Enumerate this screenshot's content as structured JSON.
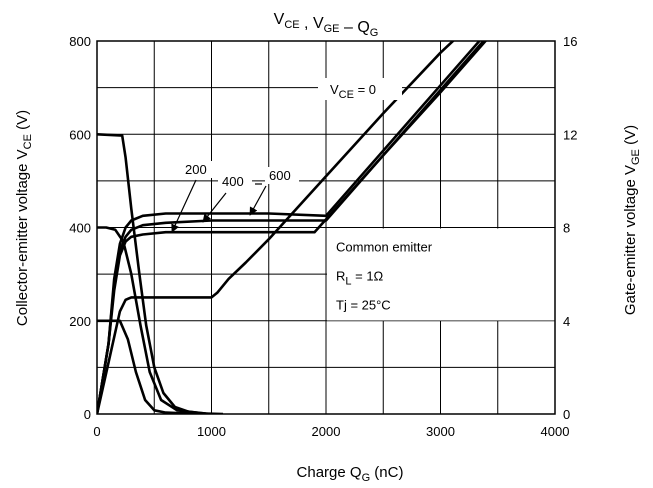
{
  "chart_data": {
    "type": "line",
    "title": {
      "parts": [
        [
          "V",
          "CE"
        ],
        [
          " , V",
          "GE"
        ],
        [
          " – Q",
          "G"
        ]
      ]
    },
    "xlabel": {
      "pre": "Charge   Q",
      "sub": "G",
      "post": "    (nC)"
    },
    "ylabel_left": {
      "pre": "Collector-emitter voltage    V",
      "sub": "CE",
      "post": "     (V)"
    },
    "ylabel_right": {
      "pre": "Gate-emitter voltage    V",
      "sub": "GE",
      "post": "     (V)"
    },
    "xlim": [
      0,
      4000
    ],
    "ylim_left": [
      0,
      800
    ],
    "ylim_right": [
      0,
      16
    ],
    "x_ticks": [
      0,
      1000,
      2000,
      3000,
      4000
    ],
    "y_left_ticks": [
      0,
      200,
      400,
      600,
      800
    ],
    "y_right_ticks": [
      0,
      4,
      8,
      12,
      16
    ],
    "x_tick_labels": [
      "0",
      "1000",
      "2000",
      "3000",
      "4000"
    ],
    "y_left_tick_labels": [
      "0",
      "200",
      "400",
      "600",
      "800"
    ],
    "y_right_tick_labels": [
      "0",
      "4",
      "8",
      "12",
      "16"
    ],
    "grid_lines_x": [
      500,
      1000,
      1500,
      2000,
      2500,
      3000,
      3500
    ],
    "grid_lines_y": [
      100,
      200,
      300,
      400,
      500,
      600,
      700
    ],
    "vce_labels": [
      "200",
      "400",
      "600"
    ],
    "vge_label": {
      "pre": "V",
      "sub": "CE",
      "post": " = 0"
    },
    "legend": {
      "placement": "center-right",
      "lines": [
        {
          "pre": "Common emitter",
          "sub": "",
          "post": ""
        },
        {
          "pre": "R",
          "sub": "L",
          "post": " = 1Ω"
        },
        {
          "pre": "Tj = 25°C",
          "sub": "",
          "post": ""
        }
      ]
    },
    "series": [
      {
        "axis": "left",
        "label": "200",
        "x": [
          0,
          200,
          270,
          340,
          420,
          500,
          600,
          800,
          1000
        ],
        "y": [
          200,
          200,
          160,
          90,
          30,
          8,
          3,
          1,
          0
        ]
      },
      {
        "axis": "left",
        "label": "400",
        "x": [
          0,
          80,
          160,
          230,
          300,
          380,
          460,
          560,
          700,
          900,
          1000
        ],
        "y": [
          400,
          400,
          395,
          370,
          300,
          190,
          90,
          30,
          8,
          2,
          0
        ]
      },
      {
        "axis": "left",
        "label": "600",
        "x": [
          0,
          220,
          250,
          300,
          370,
          430,
          500,
          580,
          680,
          800,
          950,
          1100
        ],
        "y": [
          600,
          597,
          550,
          440,
          300,
          190,
          100,
          45,
          15,
          5,
          1,
          0
        ]
      },
      {
        "axis": "right",
        "label": "200",
        "x": [
          0,
          100,
          200,
          250,
          300,
          500,
          800,
          1000,
          1050,
          1150,
          1300,
          1500,
          2000,
          2500,
          3000,
          3500
        ],
        "y": [
          0,
          2.2,
          4.4,
          4.9,
          5.0,
          5.0,
          5.0,
          5.0,
          5.2,
          5.8,
          6.5,
          7.5,
          10.2,
          12.9,
          15.5,
          17.8
        ]
      },
      {
        "axis": "right",
        "label": "400",
        "x": [
          0,
          100,
          150,
          200,
          250,
          300,
          400,
          600,
          1000,
          1500,
          1900,
          2500,
          3000,
          3500
        ],
        "y": [
          0,
          3,
          5.3,
          6.8,
          7.4,
          7.6,
          7.7,
          7.8,
          7.8,
          7.8,
          7.8,
          11.1,
          13.8,
          16.6
        ]
      },
      {
        "axis": "right",
        "label": "600",
        "x": [
          0,
          100,
          150,
          200,
          250,
          300,
          400,
          600,
          1000,
          1500,
          2000,
          2500,
          3000,
          3500
        ],
        "y": [
          0,
          3,
          5.6,
          7.0,
          7.6,
          7.9,
          8.1,
          8.2,
          8.3,
          8.3,
          8.3,
          11.1,
          13.9,
          16.7
        ]
      },
      {
        "axis": "right",
        "label": "600",
        "x": [
          0,
          100,
          150,
          200,
          250,
          300,
          400,
          600,
          1000,
          1500,
          2000,
          2500,
          3000,
          3500
        ],
        "y": [
          0,
          3,
          5.8,
          7.3,
          8.0,
          8.3,
          8.5,
          8.6,
          8.6,
          8.6,
          8.5,
          11.3,
          14.1,
          16.9
        ]
      }
    ]
  }
}
